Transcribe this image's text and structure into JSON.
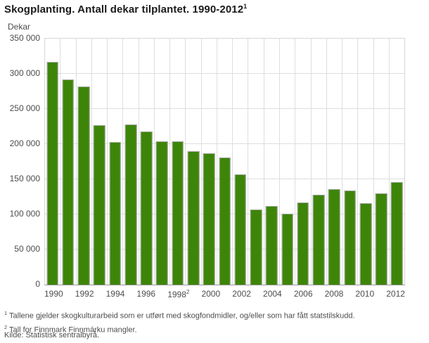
{
  "header": {
    "title": "Skogplanting. Antall dekar tilplantet. 1990-2012",
    "title_superscript": "1"
  },
  "y_axis": {
    "unit_label": "Dekar",
    "tick_labels": [
      "350 000",
      "300 000",
      "250 000",
      "200 000",
      "150 000",
      "100 000",
      "50 000",
      "0"
    ]
  },
  "chart_data": {
    "type": "bar",
    "title": "Skogplanting. Antall dekar tilplantet. 1990-2012",
    "ylabel": "Dekar",
    "ylim": [
      0,
      350000
    ],
    "y_tick_step": 50000,
    "grid": true,
    "legend": "none",
    "bar_color": "#3d8508",
    "categories": [
      1990,
      1991,
      1992,
      1993,
      1994,
      1995,
      1996,
      1997,
      1998,
      1999,
      2000,
      2001,
      2002,
      2003,
      2004,
      2005,
      2006,
      2007,
      2008,
      2009,
      2010,
      2011,
      2012
    ],
    "values": [
      317000,
      292000,
      282000,
      227000,
      203000,
      228000,
      218000,
      204000,
      204000,
      190000,
      187000,
      181000,
      157000,
      107000,
      112000,
      101000,
      117000,
      128000,
      136000,
      134000,
      116000,
      130000,
      146000
    ],
    "x_tick_labels": [
      "1990",
      "1992",
      "1994",
      "1996",
      "1998",
      "2000",
      "2002",
      "2004",
      "2006",
      "2008",
      "2010",
      "2012"
    ],
    "x_tick_superscript": {
      "label": "1998",
      "sup": "2"
    }
  },
  "footnotes": [
    {
      "sup": "1",
      "text": "Tallene gjelder skogkulturarbeid som er utført med skogfondmidler, og/eller som har fått statstilskudd."
    },
    {
      "sup": "2",
      "text": "Tall for Finnmark Finnmárku mangler."
    }
  ],
  "source": {
    "text": "Kilde: Statistisk sentralbyrå."
  }
}
